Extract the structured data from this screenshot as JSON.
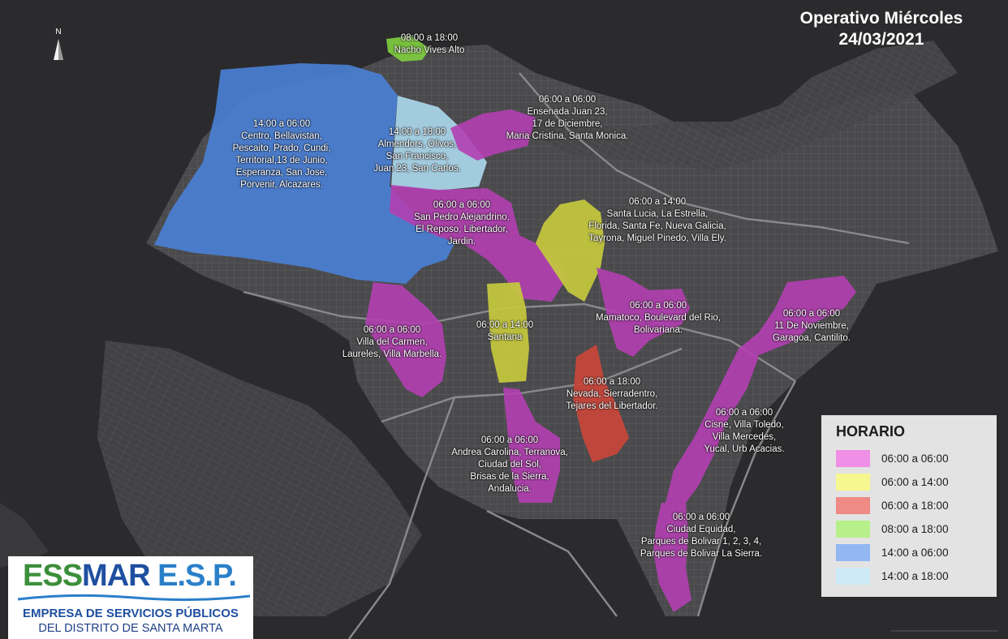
{
  "header": {
    "title_line1": "Operativo Miércoles",
    "title_line2": "24/03/2021"
  },
  "north_arrow": {
    "label": "N"
  },
  "zones": [
    {
      "id": "nacho-vives",
      "schedule": "08:00 a 18:00",
      "lines": [
        "Nacho Vives Alto"
      ],
      "color": "#7fcf3f"
    },
    {
      "id": "centro",
      "schedule": "14:00 a 06:00",
      "lines": [
        "Centro, Bellavistan,",
        "Pescaito, Prado, Cundi,",
        "Territorial,13 de Junio,",
        "Esperanza, San Jose,",
        "Porvenir, Alcazares."
      ],
      "color": "#4a7fd4"
    },
    {
      "id": "almendros",
      "schedule": "14:00 a 18:00",
      "lines": [
        "Almendors, Olivos,",
        "San Francisco,",
        "Juan 23, San Carlos."
      ],
      "color": "#a9d6ea"
    },
    {
      "id": "ensenada",
      "schedule": "06:00 a 06:00",
      "lines": [
        "Ensenada Juan 23,",
        "17 de Diciembre,",
        "Maria Cristina, Santa Monica."
      ],
      "color": "#b23fb1"
    },
    {
      "id": "san-pedro",
      "schedule": "06:00 a 06:00",
      "lines": [
        "San Pedro Alejandrino,",
        "El Reposo, Libertador,",
        "Jardin."
      ],
      "color": "#b23fb1"
    },
    {
      "id": "santa-lucia",
      "schedule": "06:00 a 14:00",
      "lines": [
        "Santa Lucia, La Estrella,",
        "Florida, Santa Fe, Nueva Galicia,",
        "Tayrona, Miguel Pinedo, Villa Ely."
      ],
      "color": "#c6c93d"
    },
    {
      "id": "villa-carmen",
      "schedule": "06:00 a 06:00",
      "lines": [
        "Villa del Carmen,",
        "Laureles, Villa Marbella."
      ],
      "color": "#b23fb1"
    },
    {
      "id": "santana",
      "schedule": "06:00 a 14:00",
      "lines": [
        "Santana"
      ],
      "color": "#c6c93d"
    },
    {
      "id": "mamatoco",
      "schedule": "06:00 a 06:00",
      "lines": [
        "Mamatoco, Boulevard del Rio,",
        "Bolivariana."
      ],
      "color": "#b23fb1"
    },
    {
      "id": "once-noviembre",
      "schedule": "06:00 a 06:00",
      "lines": [
        "11 De Noviembre,",
        "Garagoa, Cantilito."
      ],
      "color": "#b23fb1"
    },
    {
      "id": "nevada",
      "schedule": "06:00 a 18:00",
      "lines": [
        "Nevada, Sierradentro,",
        "Tejares del Libertador."
      ],
      "color": "#c9453a"
    },
    {
      "id": "andrea-carolina",
      "schedule": "06:00 a 06:00",
      "lines": [
        "Andrea Carolina, Terranova,",
        "Ciudad del Sol,",
        "Brisas de la Sierra,",
        "Andalucia."
      ],
      "color": "#b23fb1"
    },
    {
      "id": "cisne",
      "schedule": "06:00 a 06:00",
      "lines": [
        "Cisne, Villa Toledo,",
        "Villa Mercedes,",
        "Yucal, Urb Acacias."
      ],
      "color": "#b23fb1"
    },
    {
      "id": "ciudad-equidad",
      "schedule": "06:00 a 06:00",
      "lines": [
        "Ciudad Equidad,",
        "Parques de Bolivar 1, 2, 3, 4,",
        "Parques de Bolivar La Sierra."
      ],
      "color": "#b23fb1"
    }
  ],
  "legend": {
    "title": "HORARIO",
    "items": [
      {
        "label": "06:00 a 06:00",
        "color": "#ef8fe6"
      },
      {
        "label": "06:00 a 14:00",
        "color": "#f7f78f"
      },
      {
        "label": "06:00 a 18:00",
        "color": "#ef8a84"
      },
      {
        "label": "08:00 a 18:00",
        "color": "#b7f08a"
      },
      {
        "label": "14:00 a 06:00",
        "color": "#93b7f2"
      },
      {
        "label": "14:00 a 18:00",
        "color": "#cdeaf6"
      }
    ]
  },
  "logo": {
    "brand": "ESSMAR E.S.P.",
    "line1": "EMPRESA DE SERVICIOS PÚBLICOS",
    "line2": "DEL DISTRITO DE SANTA MARTA",
    "colors": {
      "ess": "#3c8f3a",
      "mar": "#1f4fa0",
      "esp": "#2a7fc9"
    }
  }
}
